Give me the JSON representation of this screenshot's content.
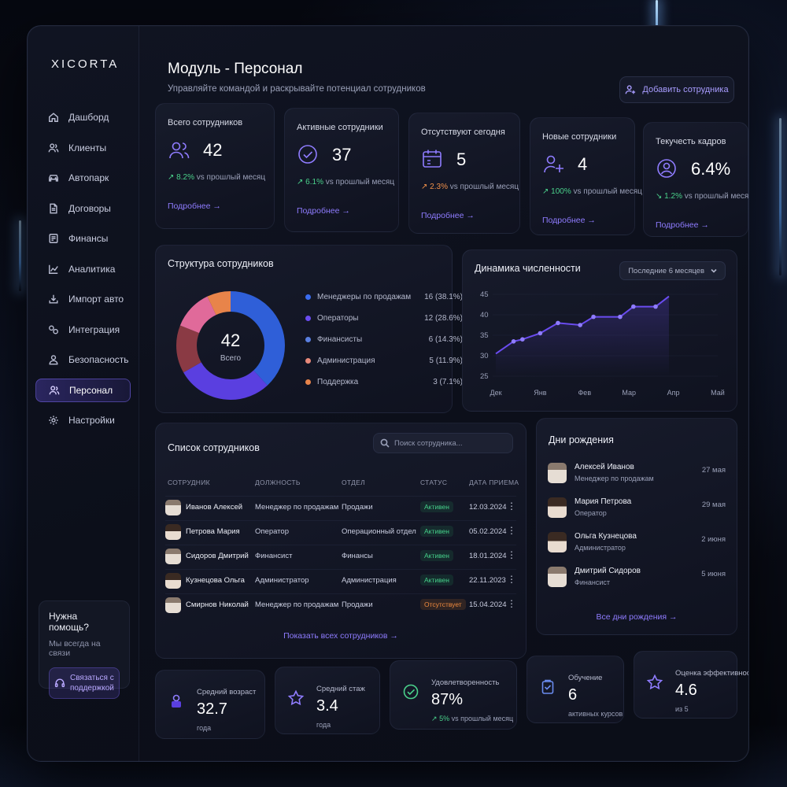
{
  "app": {
    "logo": "XICORTA"
  },
  "sidebar": {
    "items": [
      {
        "label": "Дашборд",
        "icon": "home-icon"
      },
      {
        "label": "Клиенты",
        "icon": "users-icon"
      },
      {
        "label": "Автопарк",
        "icon": "car-icon"
      },
      {
        "label": "Договоры",
        "icon": "document-icon"
      },
      {
        "label": "Финансы",
        "icon": "wallet-icon"
      },
      {
        "label": "Аналитика",
        "icon": "chart-icon"
      },
      {
        "label": "Импорт авто",
        "icon": "download-icon"
      },
      {
        "label": "Интеграция",
        "icon": "link-icon"
      },
      {
        "label": "Безопасность",
        "icon": "user-shield-icon"
      },
      {
        "label": "Персонал",
        "icon": "team-icon",
        "active": true
      },
      {
        "label": "Настройки",
        "icon": "gear-icon"
      }
    ],
    "help": {
      "title": "Нужна помощь?",
      "subtitle": "Мы всегда на связи",
      "button": "Связаться с поддержкой"
    }
  },
  "header": {
    "title": "Модуль - Персонал",
    "subtitle": "Управляйте командой и раскрывайте потенциал сотрудников",
    "add_button": "Добавить сотрудника"
  },
  "kpis": [
    {
      "title": "Всего сотрудников",
      "value": "42",
      "delta": "8.2%",
      "delta_dir": "up",
      "delta_text": "vs прошлый месяц",
      "link": "Подробнее"
    },
    {
      "title": "Активные сотрудники",
      "value": "37",
      "delta": "6.1%",
      "delta_dir": "up",
      "delta_text": "vs прошлый месяц",
      "link": "Подробнее"
    },
    {
      "title": "Отсутствуют сегодня",
      "value": "5",
      "delta": "2.3%",
      "delta_dir": "warn",
      "delta_text": "vs прошлый месяц",
      "link": "Подробнее"
    },
    {
      "title": "Новые сотрудники",
      "value": "4",
      "delta": "100%",
      "delta_dir": "up",
      "delta_text": "vs прошлый месяц",
      "link": "Подробнее"
    },
    {
      "title": "Текучесть кадров",
      "value": "6.4%",
      "delta": "1.2%",
      "delta_dir": "down",
      "delta_text": "vs прошлый месяц",
      "link": "Подробнее"
    }
  ],
  "structure": {
    "title": "Структура сотрудников",
    "center_value": "42",
    "center_label": "Всего",
    "segments": [
      {
        "name": "Менеджеры по продажам",
        "count": 16,
        "label": "16 (38.1%)",
        "color": "#2f5fd8"
      },
      {
        "name": "Операторы",
        "count": 12,
        "label": "12 (28.6%)",
        "color": "#5a3fe0"
      },
      {
        "name": "Финансисты",
        "count": 6,
        "label": "6 (14.3%)",
        "color": "#8a3a44"
      },
      {
        "name": "Администрация",
        "count": 5,
        "label": "5 (11.9%)",
        "color": "#e06a9a"
      },
      {
        "name": "Поддержка",
        "count": 3,
        "label": "3 (7.1%)",
        "color": "#e8844a"
      }
    ],
    "legend_colors": [
      "#3a6cf0",
      "#6a4cf0",
      "#5a7fe0",
      "#e8897a",
      "#e8844a"
    ]
  },
  "dynamics": {
    "title": "Динамика численности",
    "period": "Последние 6 месяцев"
  },
  "chart_data": {
    "type": "line",
    "title": "Динамика численности",
    "xlabel": "",
    "ylabel": "",
    "x_ticks": [
      "Дек",
      "Янв",
      "Фев",
      "Мар",
      "Апр",
      "Май"
    ],
    "y_ticks": [
      25,
      30,
      35,
      40,
      45
    ],
    "ylim": [
      25,
      45
    ],
    "series": [
      {
        "values": [
          30.5,
          33.5,
          34,
          35.5,
          38,
          37.5,
          39.5,
          39.5,
          42,
          42,
          44.5
        ]
      }
    ],
    "point_positions": [
      0,
      0.4,
      0.6,
      1,
      1.4,
      1.9,
      2.2,
      2.8,
      3.1,
      3.6,
      3.9
    ],
    "color": "#6a4cf0"
  },
  "employees": {
    "title": "Список сотрудников",
    "search_placeholder": "Поиск сотрудника...",
    "columns": [
      "СОТРУДНИК",
      "ДОЛЖНОСТЬ",
      "ОТДЕЛ",
      "СТАТУС",
      "ДАТА ПРИЕМА"
    ],
    "rows": [
      {
        "name": "Иванов Алексей",
        "role": "Менеджер по продажам",
        "dept": "Продажи",
        "status": "Активен",
        "status_type": "ok",
        "date": "12.03.2024",
        "gender": "m"
      },
      {
        "name": "Петрова Мария",
        "role": "Оператор",
        "dept": "Операционный отдел",
        "status": "Активен",
        "status_type": "ok",
        "date": "05.02.2024",
        "gender": "f"
      },
      {
        "name": "Сидоров Дмитрий",
        "role": "Финансист",
        "dept": "Финансы",
        "status": "Активен",
        "status_type": "ok",
        "date": "18.01.2024",
        "gender": "m"
      },
      {
        "name": "Кузнецова Ольга",
        "role": "Администратор",
        "dept": "Администрация",
        "status": "Активен",
        "status_type": "ok",
        "date": "22.11.2023",
        "gender": "f"
      },
      {
        "name": "Смирнов Николай",
        "role": "Менеджер по продажам",
        "dept": "Продажи",
        "status": "Отсутствует",
        "status_type": "away",
        "date": "15.04.2024",
        "gender": "m"
      }
    ],
    "show_all": "Показать всех сотрудников"
  },
  "birthdays": {
    "title": "Дни рождения",
    "items": [
      {
        "name": "Алексей Иванов",
        "role": "Менеджер по продажам",
        "date": "27 мая",
        "gender": "m"
      },
      {
        "name": "Мария Петрова",
        "role": "Оператор",
        "date": "29 мая",
        "gender": "f"
      },
      {
        "name": "Ольга Кузнецова",
        "role": "Администратор",
        "date": "2 июня",
        "gender": "f"
      },
      {
        "name": "Дмитрий Сидоров",
        "role": "Финансист",
        "date": "5 июня",
        "gender": "m"
      }
    ],
    "link": "Все дни рождения"
  },
  "stats": [
    {
      "label": "Средний возраст",
      "value": "32.7",
      "sub": "года",
      "icon": "user-lock-icon",
      "color": "#8f7cff"
    },
    {
      "label": "Средний стаж",
      "value": "3.4",
      "sub": "года",
      "icon": "star-icon",
      "color": "#8f7cff"
    },
    {
      "label": "Удовлетворенность",
      "value": "87%",
      "delta": "5%",
      "sub": "vs прошлый месяц",
      "icon": "check-circle-icon",
      "color": "#4ad18b"
    },
    {
      "label": "Обучение",
      "value": "6",
      "sub": "активных курсов",
      "icon": "clipboard-icon",
      "color": "#6a8cf0"
    },
    {
      "label": "Оценка эффективности",
      "value": "4.6",
      "sub": "из 5",
      "icon": "star-icon",
      "color": "#8f7cff"
    }
  ]
}
